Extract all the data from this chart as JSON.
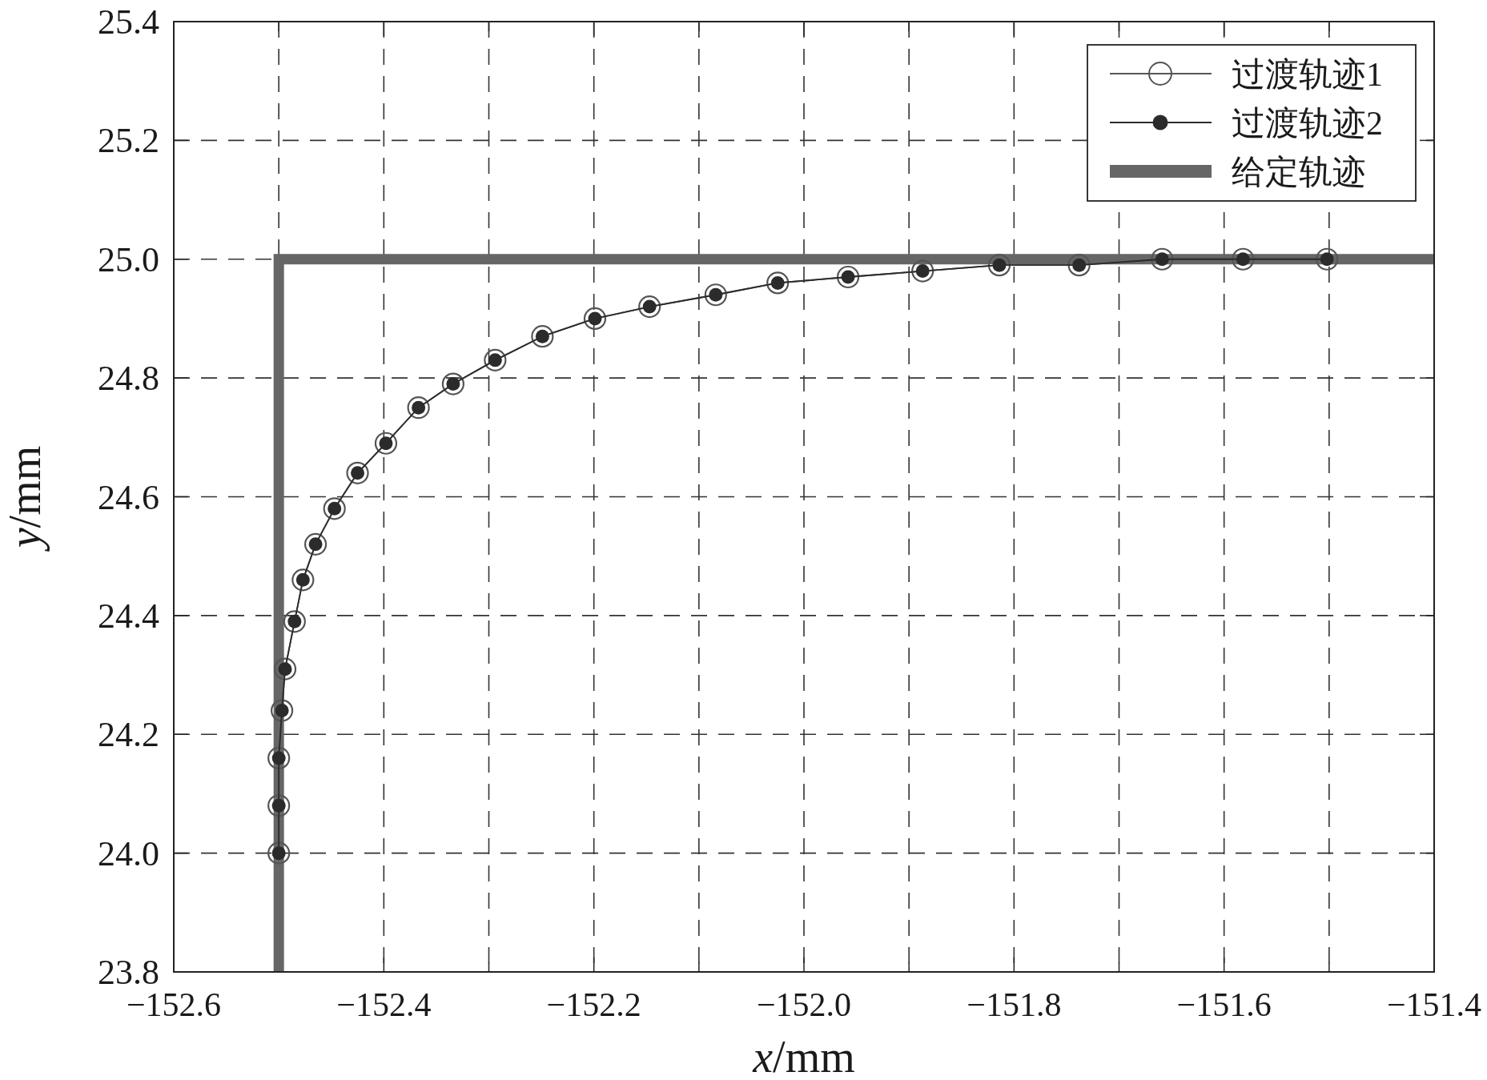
{
  "chart_data": {
    "type": "line",
    "xlabel": "*x*/mm",
    "ylabel": "*y*/mm",
    "xlim": [
      -152.6,
      -151.4
    ],
    "ylim": [
      23.8,
      25.4
    ],
    "xticks": [
      {
        "value": -152.6,
        "label": "−152.6"
      },
      {
        "value": -152.5,
        "label": null
      },
      {
        "value": -152.4,
        "label": "−152.4"
      },
      {
        "value": -152.3,
        "label": null
      },
      {
        "value": -152.2,
        "label": "−152.2"
      },
      {
        "value": -152.1,
        "label": null
      },
      {
        "value": -152.0,
        "label": "−152.0"
      },
      {
        "value": -151.9,
        "label": null
      },
      {
        "value": -151.8,
        "label": "−151.8"
      },
      {
        "value": -151.7,
        "label": null
      },
      {
        "value": -151.6,
        "label": "−151.6"
      },
      {
        "value": -151.5,
        "label": null
      },
      {
        "value": -151.4,
        "label": "−151.4"
      }
    ],
    "yticks": [
      {
        "value": 23.8,
        "label": "23.8"
      },
      {
        "value": 24.0,
        "label": "24.0"
      },
      {
        "value": 24.2,
        "label": "24.2"
      },
      {
        "value": 24.4,
        "label": "24.4"
      },
      {
        "value": 24.6,
        "label": "24.6"
      },
      {
        "value": 24.8,
        "label": "24.8"
      },
      {
        "value": 25.0,
        "label": "25.0"
      },
      {
        "value": 25.2,
        "label": "25.2"
      },
      {
        "value": 25.4,
        "label": "25.4"
      }
    ],
    "grid": true,
    "legend": "top right",
    "line_style": "solid",
    "series": [
      {
        "name": "过渡轨迹1",
        "color": "#555555",
        "marker": "circle",
        "x": [
          -152.5,
          -152.5,
          -152.5,
          -152.497,
          -152.494,
          -152.485,
          -152.477,
          -152.465,
          -152.447,
          -152.425,
          -152.398,
          -152.367,
          -152.334,
          -152.294,
          -152.249,
          -152.199,
          -152.147,
          -152.084,
          -152.025,
          -151.958,
          -151.887,
          -151.814,
          -151.738,
          -151.659,
          -151.582,
          -151.502
        ],
        "values": [
          24.0,
          24.08,
          24.16,
          24.24,
          24.31,
          24.39,
          24.46,
          24.52,
          24.58,
          24.64,
          24.69,
          24.75,
          24.79,
          24.83,
          24.87,
          24.9,
          24.92,
          24.94,
          24.96,
          24.97,
          24.98,
          24.99,
          24.99,
          25.0,
          25.0,
          25.0
        ]
      },
      {
        "name": "过渡轨迹2",
        "color": "#2b2b2b",
        "marker": "circle",
        "x": [
          -152.5,
          -152.5,
          -152.5,
          -152.497,
          -152.494,
          -152.485,
          -152.477,
          -152.465,
          -152.447,
          -152.425,
          -152.398,
          -152.367,
          -152.334,
          -152.294,
          -152.249,
          -152.199,
          -152.147,
          -152.084,
          -152.025,
          -151.958,
          -151.887,
          -151.814,
          -151.738,
          -151.659,
          -151.582,
          -151.502
        ],
        "values": [
          24.0,
          24.08,
          24.16,
          24.24,
          24.31,
          24.39,
          24.46,
          24.52,
          24.58,
          24.64,
          24.69,
          24.75,
          24.79,
          24.83,
          24.87,
          24.9,
          24.92,
          24.94,
          24.96,
          24.97,
          24.98,
          24.99,
          24.99,
          25.0,
          25.0,
          25.0
        ]
      },
      {
        "name": "给定轨迹",
        "color": "#666666",
        "marker": "none",
        "x": [
          -152.5,
          -152.5,
          -151.4
        ],
        "values": [
          23.8,
          25.0,
          25.0
        ]
      }
    ]
  }
}
